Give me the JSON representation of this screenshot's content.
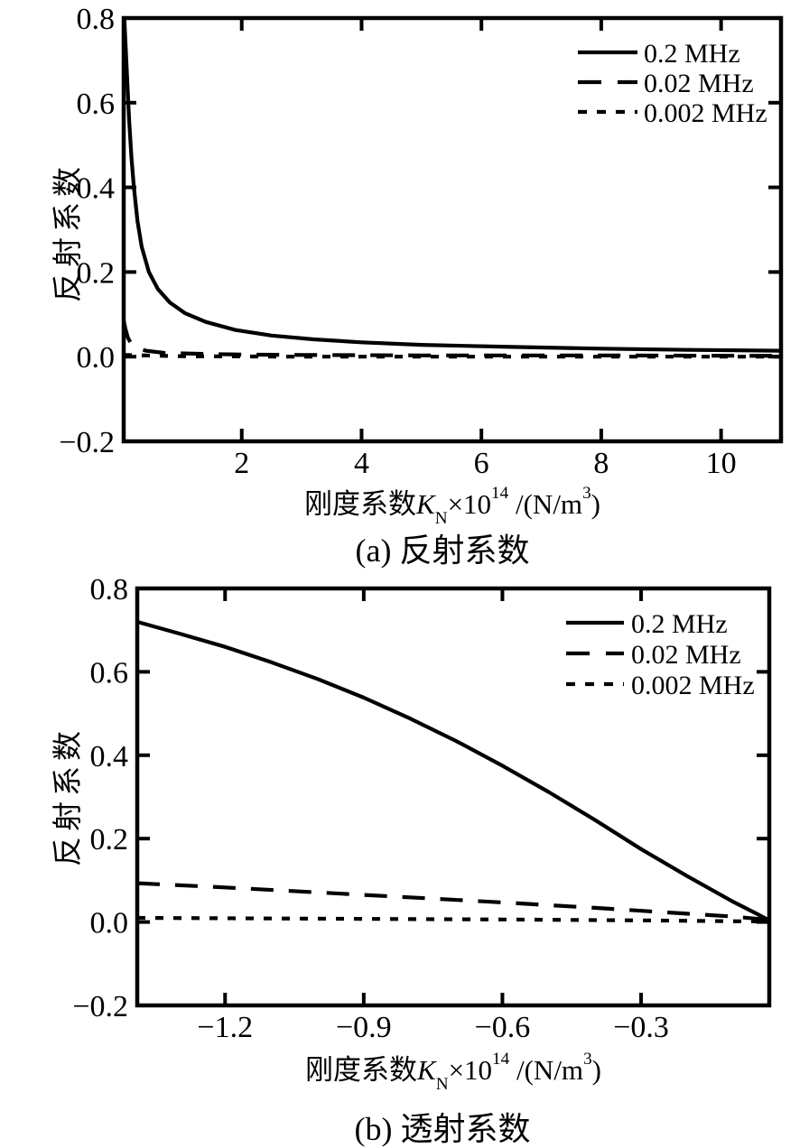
{
  "page": {
    "background": "#ffffff",
    "line_color": "#000000"
  },
  "chart_data": [
    {
      "type": "line",
      "panel": "a",
      "title": "(a) 反射系数",
      "xlabel": "刚度系数K_N×10^14 /(N/m^3)",
      "ylabel": "反射系数",
      "xlabel_parts": {
        "prefix": "刚度系数",
        "symbol": "K",
        "symbol_sub": "N",
        "times_base": "×10",
        "exponent": "14",
        "unit_open": " /(N/m",
        "unit_exponent": "3",
        "unit_close": ")"
      },
      "xlim": [
        0.03,
        11.0
      ],
      "ylim": [
        -0.2,
        0.8
      ],
      "xticks": [
        2,
        4,
        6,
        8,
        10
      ],
      "xtick_labels": [
        "2",
        "4",
        "6",
        "8",
        "10"
      ],
      "yticks": [
        0.8,
        0.6,
        0.4,
        0.2,
        0.0,
        -0.2
      ],
      "ytick_labels": [
        "0.8",
        "0.6",
        "0.4",
        "0.2",
        "0.0",
        "−0.2"
      ],
      "grid": false,
      "legend_position": "top-right",
      "series": [
        {
          "name": "0.2 MHz",
          "style": "solid",
          "x": [
            0.04,
            0.06,
            0.09,
            0.12,
            0.16,
            0.2,
            0.26,
            0.33,
            0.45,
            0.6,
            0.8,
            1.05,
            1.4,
            1.9,
            2.5,
            3.2,
            4.0,
            5.0,
            6.5,
            8.0,
            9.5,
            11.0
          ],
          "y": [
            0.8,
            0.74,
            0.65,
            0.56,
            0.47,
            0.4,
            0.32,
            0.26,
            0.2,
            0.16,
            0.128,
            0.103,
            0.082,
            0.063,
            0.05,
            0.041,
            0.034,
            0.028,
            0.023,
            0.019,
            0.016,
            0.014
          ]
        },
        {
          "name": "0.02 MHz",
          "style": "dashed",
          "x": [
            0.03,
            0.06,
            0.1,
            0.15,
            0.25,
            0.4,
            0.7,
            1.2,
            2.0,
            3.0,
            5.0,
            8.0,
            11.0
          ],
          "y": [
            0.085,
            0.065,
            0.045,
            0.032,
            0.021,
            0.014,
            0.009,
            0.007,
            0.005,
            0.004,
            0.003,
            0.003,
            0.002
          ]
        },
        {
          "name": "0.002 MHz",
          "style": "dotted",
          "x": [
            0.03,
            1.0,
            3.0,
            6.0,
            9.0,
            11.0
          ],
          "y": [
            0.004,
            0.001,
            0.0,
            0.0,
            0.0,
            0.0
          ]
        }
      ]
    },
    {
      "type": "line",
      "panel": "b",
      "title": "(b) 透射系数",
      "xlabel": "刚度系数K_N×10^14 /(N/m^3)",
      "ylabel": "反射系数",
      "xlabel_parts": {
        "prefix": "刚度系数",
        "symbol": "K",
        "symbol_sub": "N",
        "times_base": "×10",
        "exponent": "14",
        "unit_open": " /(N/m",
        "unit_exponent": "3",
        "unit_close": ")"
      },
      "xlim": [
        -1.39,
        -0.0227
      ],
      "ylim": [
        -0.2,
        0.8
      ],
      "xticks": [
        -1.2,
        -0.9,
        -0.6,
        -0.3
      ],
      "xtick_labels": [
        "−1.2",
        "−0.9",
        "−0.6",
        "−0.3"
      ],
      "yticks": [
        0.8,
        0.6,
        0.4,
        0.2,
        0.0,
        -0.2
      ],
      "ytick_labels": [
        "0.8",
        "0.6",
        "0.4",
        "0.2",
        "0.0",
        "−0.2"
      ],
      "grid": false,
      "legend_position": "top-right",
      "series": [
        {
          "name": "0.2 MHz",
          "style": "solid",
          "x": [
            -1.39,
            -1.3,
            -1.2,
            -1.1,
            -1.0,
            -0.9,
            -0.8,
            -0.7,
            -0.6,
            -0.5,
            -0.4,
            -0.3,
            -0.2,
            -0.1,
            -0.05,
            -0.023
          ],
          "y": [
            0.72,
            0.692,
            0.66,
            0.623,
            0.583,
            0.538,
            0.488,
            0.434,
            0.375,
            0.312,
            0.245,
            0.175,
            0.11,
            0.048,
            0.02,
            0.004
          ]
        },
        {
          "name": "0.02 MHz",
          "style": "dashed",
          "x": [
            -1.39,
            -1.2,
            -1.0,
            -0.8,
            -0.6,
            -0.4,
            -0.2,
            -0.1,
            -0.023
          ],
          "y": [
            0.093,
            0.083,
            0.071,
            0.059,
            0.047,
            0.034,
            0.02,
            0.013,
            0.005
          ]
        },
        {
          "name": "0.002 MHz",
          "style": "dotted",
          "x": [
            -1.39,
            -1.0,
            -0.6,
            -0.3,
            -0.023
          ],
          "y": [
            0.01,
            0.008,
            0.006,
            0.004,
            0.001
          ]
        }
      ]
    }
  ]
}
